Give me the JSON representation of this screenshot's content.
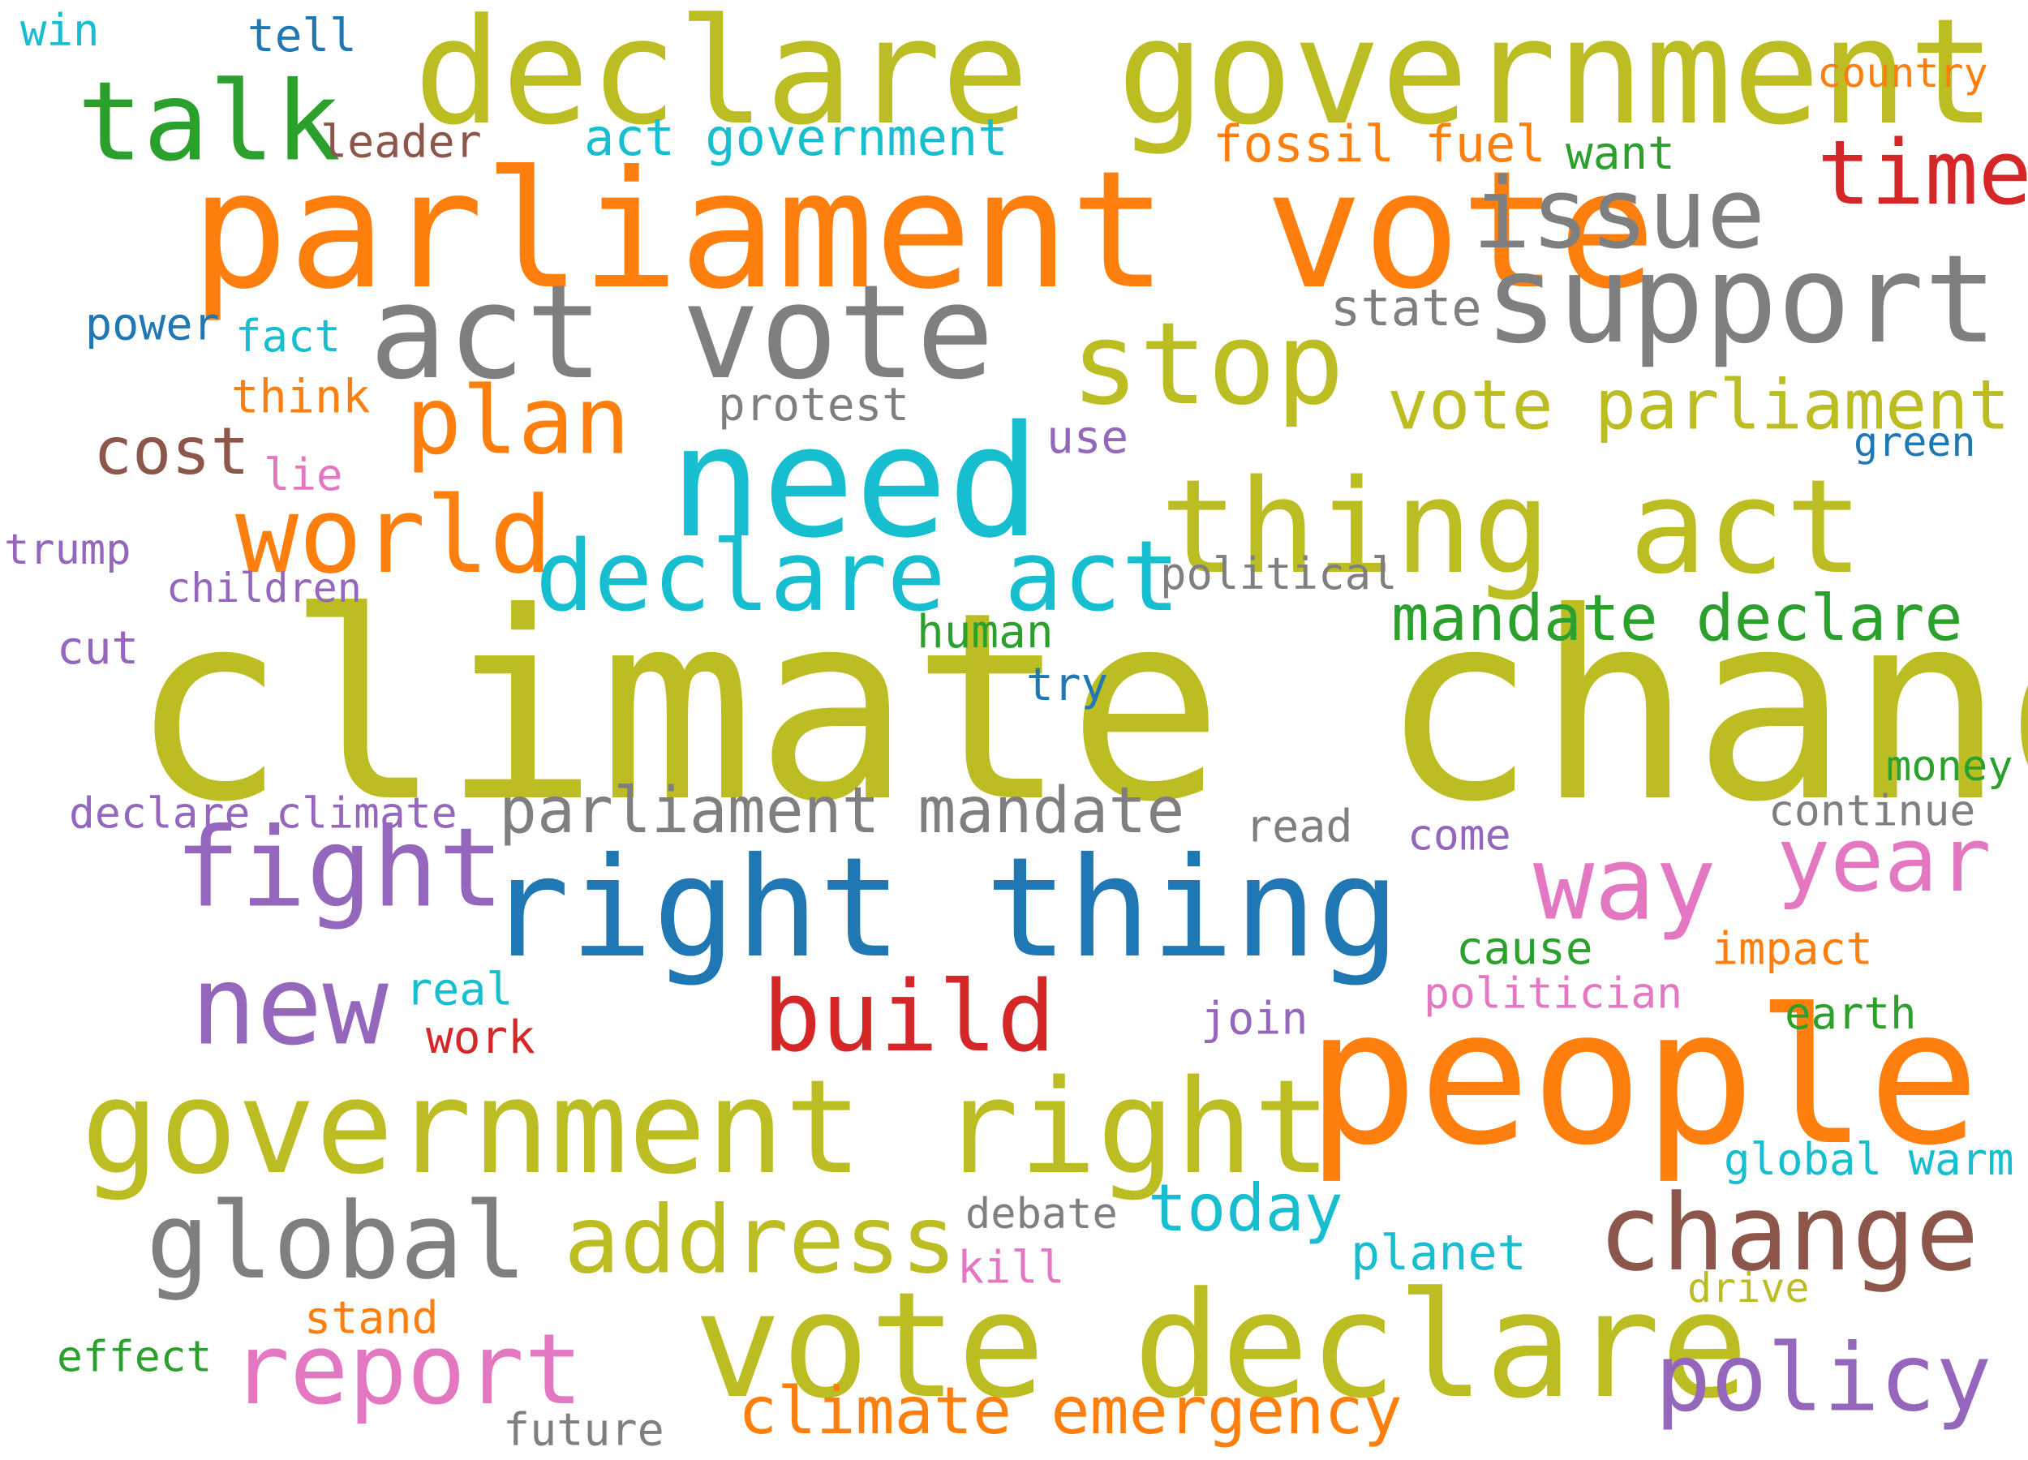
{
  "palette": {
    "olive": "#bcbd22",
    "orange": "#ff7f0e",
    "gray": "#7f7f7f",
    "cyan": "#17becf",
    "blue": "#1f77b4",
    "green": "#2ca02c",
    "red": "#d62728",
    "purple": "#9467bd",
    "pink": "#e377c2",
    "brown": "#8c564b"
  },
  "words": [
    {
      "text": "climate change",
      "color": "olive"
    },
    {
      "text": "parliament vote",
      "color": "orange"
    },
    {
      "text": "declare government",
      "color": "olive"
    },
    {
      "text": "people",
      "color": "orange"
    },
    {
      "text": "right thing",
      "color": "blue"
    },
    {
      "text": "need",
      "color": "cyan"
    },
    {
      "text": "government right",
      "color": "olive"
    },
    {
      "text": "vote declare",
      "color": "olive"
    },
    {
      "text": "act vote",
      "color": "gray"
    },
    {
      "text": "thing act",
      "color": "olive"
    },
    {
      "text": "support",
      "color": "gray"
    },
    {
      "text": "stop",
      "color": "olive"
    },
    {
      "text": "talk",
      "color": "green"
    },
    {
      "text": "issue",
      "color": "gray"
    },
    {
      "text": "time",
      "color": "red"
    },
    {
      "text": "declare act",
      "color": "cyan"
    },
    {
      "text": "world",
      "color": "orange"
    },
    {
      "text": "plan",
      "color": "orange"
    },
    {
      "text": "fight",
      "color": "purple"
    },
    {
      "text": "new",
      "color": "purple"
    },
    {
      "text": "build",
      "color": "red"
    },
    {
      "text": "change",
      "color": "brown"
    },
    {
      "text": "global",
      "color": "gray"
    },
    {
      "text": "address",
      "color": "olive"
    },
    {
      "text": "report",
      "color": "pink"
    },
    {
      "text": "way",
      "color": "pink"
    },
    {
      "text": "year",
      "color": "pink"
    },
    {
      "text": "policy",
      "color": "purple"
    },
    {
      "text": "vote parliament",
      "color": "olive"
    },
    {
      "text": "mandate declare",
      "color": "green"
    },
    {
      "text": "parliament mandate",
      "color": "gray"
    },
    {
      "text": "climate emergency",
      "color": "orange"
    },
    {
      "text": "today",
      "color": "cyan"
    },
    {
      "text": "cost",
      "color": "brown"
    },
    {
      "text": "fossil fuel",
      "color": "orange"
    },
    {
      "text": "act government",
      "color": "cyan"
    },
    {
      "text": "state",
      "color": "gray"
    },
    {
      "text": "protest",
      "color": "gray"
    },
    {
      "text": "political",
      "color": "gray"
    },
    {
      "text": "human",
      "color": "green"
    },
    {
      "text": "try",
      "color": "blue"
    },
    {
      "text": "use",
      "color": "purple"
    },
    {
      "text": "green",
      "color": "blue"
    },
    {
      "text": "leader",
      "color": "brown"
    },
    {
      "text": "tell",
      "color": "blue"
    },
    {
      "text": "win",
      "color": "cyan"
    },
    {
      "text": "country",
      "color": "orange"
    },
    {
      "text": "want",
      "color": "green"
    },
    {
      "text": "power",
      "color": "blue"
    },
    {
      "text": "fact",
      "color": "cyan"
    },
    {
      "text": "think",
      "color": "orange"
    },
    {
      "text": "lie",
      "color": "pink"
    },
    {
      "text": "trump",
      "color": "purple"
    },
    {
      "text": "children",
      "color": "purple"
    },
    {
      "text": "cut",
      "color": "purple"
    },
    {
      "text": "declare climate",
      "color": "purple"
    },
    {
      "text": "read",
      "color": "gray"
    },
    {
      "text": "come",
      "color": "purple"
    },
    {
      "text": "money",
      "color": "green"
    },
    {
      "text": "continue",
      "color": "gray"
    },
    {
      "text": "cause",
      "color": "green"
    },
    {
      "text": "impact",
      "color": "orange"
    },
    {
      "text": "politician",
      "color": "pink"
    },
    {
      "text": "earth",
      "color": "green"
    },
    {
      "text": "join",
      "color": "purple"
    },
    {
      "text": "real",
      "color": "cyan"
    },
    {
      "text": "work",
      "color": "red"
    },
    {
      "text": "global warm",
      "color": "cyan"
    },
    {
      "text": "debate",
      "color": "gray"
    },
    {
      "text": "kill",
      "color": "pink"
    },
    {
      "text": "planet",
      "color": "cyan"
    },
    {
      "text": "drive",
      "color": "olive"
    },
    {
      "text": "stand",
      "color": "orange"
    },
    {
      "text": "effect",
      "color": "green"
    },
    {
      "text": "future",
      "color": "gray"
    }
  ]
}
